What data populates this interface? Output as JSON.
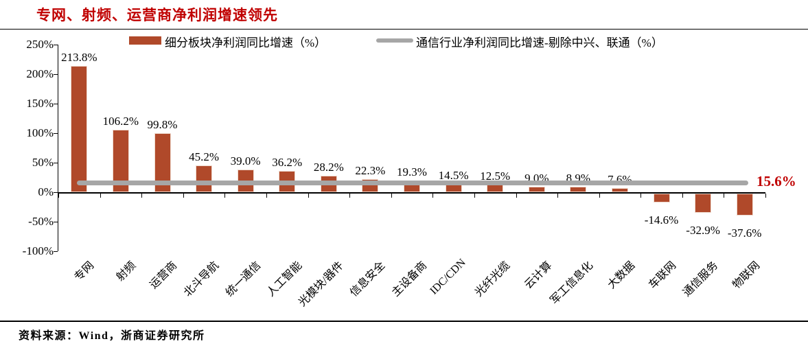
{
  "title": {
    "text": "专网、射频、运营商净利润增速领先"
  },
  "colors": {
    "title_red": "#c00000",
    "bar": "#b0492a",
    "industry_line": "#a6a6a6",
    "line_label_red": "#c00000",
    "axis": "#000000"
  },
  "chart_data": {
    "type": "bar",
    "title": "专网、射频、运营商净利润增速领先",
    "categories": [
      "专网",
      "射频",
      "运营商",
      "北斗导航",
      "统一通信",
      "人工智能",
      "光模块/器件",
      "信息安全",
      "主设备商",
      "IDC/CDN",
      "光纤光缆",
      "云计算",
      "军工信息化",
      "大数据",
      "车联网",
      "通信服务",
      "物联网"
    ],
    "series": [
      {
        "name": "细分板块净利润同比增速（%）",
        "type": "bar",
        "color": "#b0492a",
        "values": [
          213.8,
          106.2,
          99.8,
          45.2,
          39.0,
          36.2,
          28.2,
          22.3,
          19.3,
          14.5,
          12.5,
          9.0,
          8.9,
          7.6,
          -14.6,
          -32.9,
          -37.6
        ],
        "labels": [
          "213.8%",
          "106.2%",
          "99.8%",
          "45.2%",
          "39.0%",
          "36.2%",
          "28.2%",
          "22.3%",
          "19.3%",
          "14.5%",
          "12.5%",
          "9.0%",
          "8.9%",
          "7.6%",
          "-14.6%",
          "-32.9%",
          "-37.6%"
        ]
      },
      {
        "name": "通信行业净利润同比增速-剔除中兴、联通（%）",
        "type": "line",
        "color": "#a6a6a6",
        "value": 15.6,
        "label": "15.6%"
      }
    ],
    "y_axis": {
      "ticks": [
        "250%",
        "200%",
        "150%",
        "100%",
        "50%",
        "0%",
        "-50%",
        "-100%"
      ],
      "tick_values": [
        250,
        200,
        150,
        100,
        50,
        0,
        -50,
        -100
      ],
      "ylim": [
        -100,
        250
      ]
    },
    "legend_position": "top",
    "grid": false
  },
  "footer": {
    "source": "资料来源：Wind，浙商证券研究所"
  }
}
